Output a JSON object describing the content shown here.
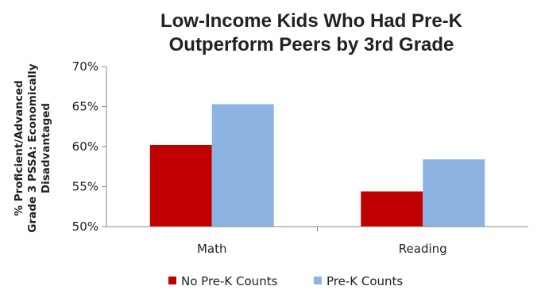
{
  "chart_data": {
    "type": "bar",
    "title": [
      "Low-Income Kids Who Had Pre-K",
      "Outperform Peers by 3rd Grade"
    ],
    "ylabel": [
      "% Proficient/Advanced",
      "Grade 3 PSSA: Economically",
      "Disadvantaged"
    ],
    "xlabel": "",
    "categories": [
      "Math",
      "Reading"
    ],
    "series": [
      {
        "name": "No Pre-K Counts",
        "color": "#c00000",
        "values": [
          60.2,
          54.4
        ]
      },
      {
        "name": "Pre-K Counts",
        "color": "#8db3e2",
        "values": [
          65.3,
          58.4
        ]
      }
    ],
    "ylim": [
      50,
      70
    ],
    "yticks": [
      "50%",
      "55%",
      "60%",
      "65%",
      "70%"
    ],
    "ytick_values": [
      50,
      55,
      60,
      65,
      70
    ],
    "grid": false,
    "legend": "bottom"
  }
}
